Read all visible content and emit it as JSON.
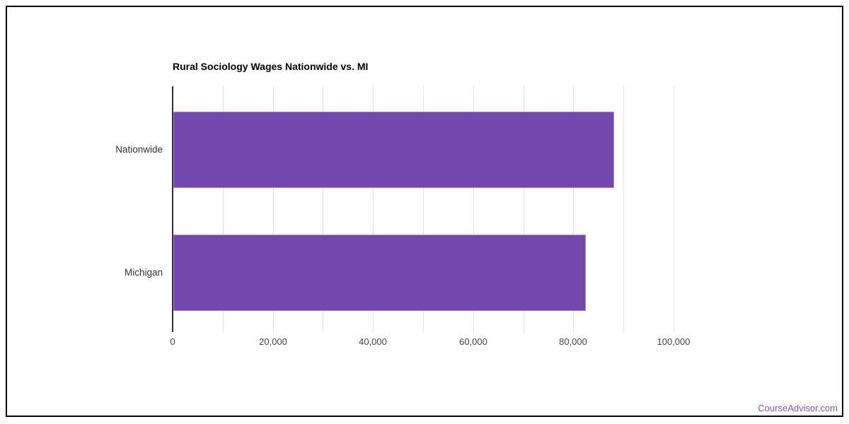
{
  "chart_data": {
    "type": "bar",
    "orientation": "horizontal",
    "title": "Rural Sociology Wages Nationwide vs. MI",
    "categories": [
      "Nationwide",
      "Michigan"
    ],
    "values": [
      88000,
      82300
    ],
    "xlabel": "",
    "ylabel": "",
    "xlim": [
      0,
      100000
    ],
    "x_ticks": [
      0,
      20000,
      40000,
      60000,
      80000,
      100000
    ],
    "x_tick_labels": [
      "0",
      "20,000",
      "40,000",
      "60,000",
      "80,000",
      "100,000"
    ],
    "gridline_interval": 10000,
    "grid": true,
    "legend": false,
    "bar_color": "#7248AE",
    "gridline_color": "#E2E2E2",
    "axis_color": "#333333"
  },
  "footer": {
    "watermark": "CourseAdvisor.com",
    "watermark_color": "#7D53C6"
  }
}
